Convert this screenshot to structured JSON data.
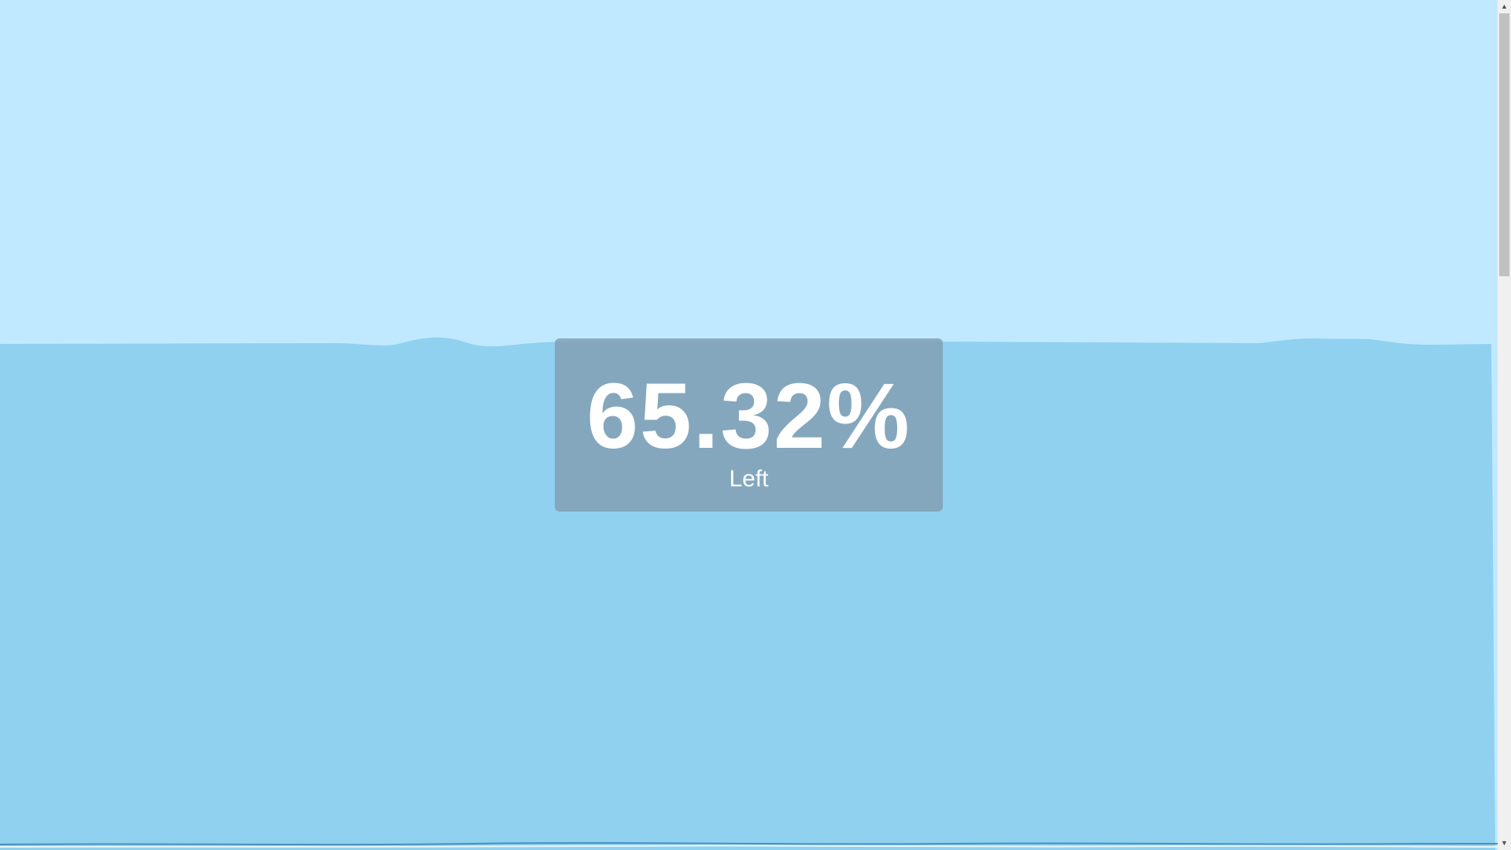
{
  "counter": {
    "percentage_text": "65.32%",
    "status_text": "Left",
    "level_percent": 65.32
  },
  "colors": {
    "sky": "#c0e9ff",
    "water": "#90d1f0",
    "panel": "#82a0b4",
    "text": "#ffffff",
    "bottom_wave": "#4a90c0"
  },
  "scrollbar": {
    "up_icon": "triangle-up-icon",
    "down_icon": "triangle-down-icon",
    "up_glyph": "▲",
    "down_glyph": "▼"
  }
}
